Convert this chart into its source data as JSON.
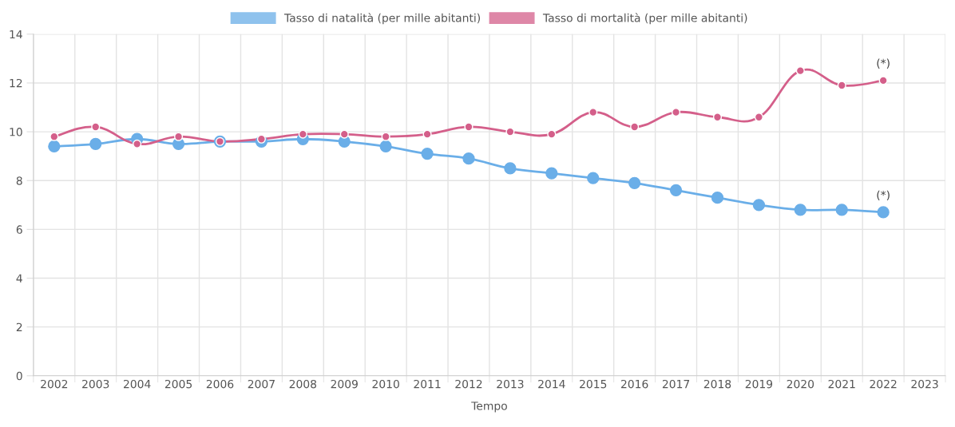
{
  "chart_data": {
    "type": "line",
    "xlabel": "Tempo",
    "categories": [
      "2002",
      "2003",
      "2004",
      "2005",
      "2006",
      "2007",
      "2008",
      "2009",
      "2010",
      "2011",
      "2012",
      "2013",
      "2014",
      "2015",
      "2016",
      "2017",
      "2018",
      "2019",
      "2020",
      "2021",
      "2022",
      "2023"
    ],
    "series": [
      {
        "name": "Tasso di natalità (per mille abitanti)",
        "color": "#6aaee8",
        "values": [
          9.4,
          9.5,
          9.7,
          9.5,
          9.6,
          9.6,
          9.7,
          9.6,
          9.4,
          9.1,
          8.9,
          8.5,
          8.3,
          8.1,
          7.9,
          7.6,
          7.3,
          7.0,
          6.8,
          6.8,
          6.7,
          null
        ]
      },
      {
        "name": "Tasso di mortalità (per mille abitanti)",
        "color": "#d45f8a",
        "values": [
          9.8,
          10.2,
          9.5,
          9.8,
          9.6,
          9.7,
          9.9,
          9.9,
          9.8,
          9.9,
          10.2,
          10.0,
          9.9,
          10.8,
          10.2,
          10.8,
          10.6,
          10.6,
          12.5,
          11.9,
          12.1,
          null
        ]
      }
    ],
    "annotations": [
      {
        "text": "(*)",
        "x": "2022",
        "y": 6.7
      },
      {
        "text": "(*)",
        "x": "2022",
        "y": 12.1
      }
    ],
    "ylim": [
      0,
      14
    ],
    "yticks": [
      0,
      2,
      4,
      6,
      8,
      10,
      12,
      14
    ],
    "grid": true,
    "legend": "top",
    "marker": "circle",
    "line_style": "solid"
  }
}
